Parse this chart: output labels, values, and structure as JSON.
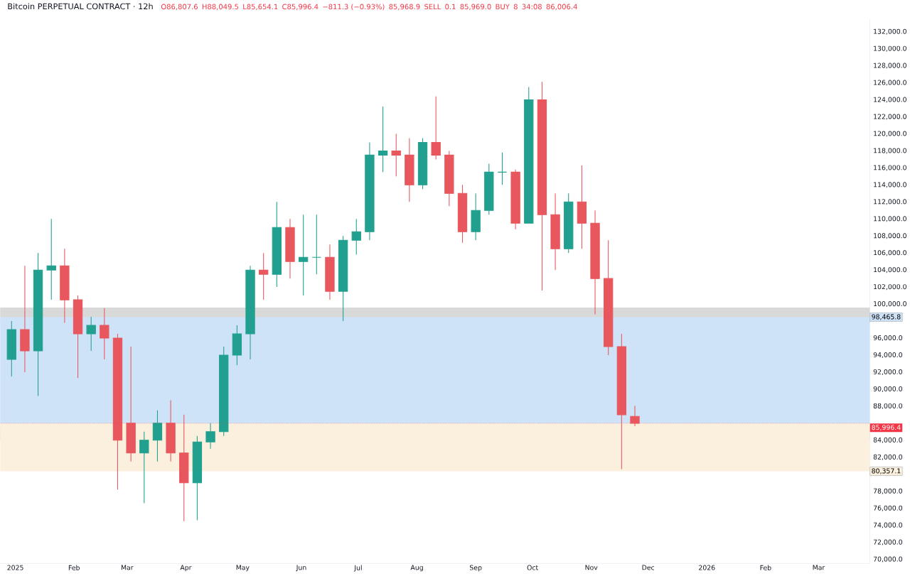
{
  "chart_data": {
    "type": "candlestick",
    "title": "Bitcoin PERPETUAL CONTRACT · 12h",
    "annotations": [
      "O86,807.6",
      "H88,049.5",
      "L85,654.1",
      "C85,996.4",
      "−811.3 (−0.93%)",
      "85,968.9",
      "SELL",
      "0.1",
      "85,969.0",
      "BUY",
      "8",
      "34:08",
      "86,006.4"
    ],
    "x": [
      "2024-12-30",
      "2025-01-06",
      "2025-01-13",
      "2025-01-20",
      "2025-01-27",
      "2025-02-03",
      "2025-02-10",
      "2025-02-17",
      "2025-02-24",
      "2025-03-03",
      "2025-03-10",
      "2025-03-17",
      "2025-03-24",
      "2025-03-31",
      "2025-04-07",
      "2025-04-14",
      "2025-04-21",
      "2025-04-28",
      "2025-05-05",
      "2025-05-12",
      "2025-05-19",
      "2025-05-26",
      "2025-06-02",
      "2025-06-09",
      "2025-06-16",
      "2025-06-23",
      "2025-06-30",
      "2025-07-07",
      "2025-07-14",
      "2025-07-21",
      "2025-07-28",
      "2025-08-04",
      "2025-08-11",
      "2025-08-18",
      "2025-08-25",
      "2025-09-01",
      "2025-09-08",
      "2025-09-15",
      "2025-09-22",
      "2025-09-29",
      "2025-10-06",
      "2025-10-13",
      "2025-10-20",
      "2025-10-27",
      "2025-11-03",
      "2025-11-10",
      "2025-11-17",
      "2025-11-24"
    ],
    "ohlc": [
      [
        93500,
        98000,
        91500,
        97000
      ],
      [
        97000,
        104500,
        92000,
        94500
      ],
      [
        94500,
        106000,
        89200,
        104000
      ],
      [
        104000,
        110000,
        100500,
        104500
      ],
      [
        104500,
        106500,
        97800,
        100500
      ],
      [
        100500,
        101000,
        91300,
        96500
      ],
      [
        96500,
        98500,
        94500,
        97500
      ],
      [
        97500,
        99500,
        93500,
        96000
      ],
      [
        96000,
        96500,
        78200,
        84000
      ],
      [
        86000,
        95000,
        81500,
        82500
      ],
      [
        82500,
        85000,
        76600,
        84000
      ],
      [
        84000,
        87500,
        81500,
        86000
      ],
      [
        86000,
        88700,
        81500,
        82500
      ],
      [
        82500,
        87000,
        74500,
        79000
      ],
      [
        79000,
        84500,
        74600,
        83800
      ],
      [
        83800,
        86000,
        83000,
        85000
      ],
      [
        85000,
        95000,
        84500,
        94000
      ],
      [
        94000,
        97500,
        92800,
        96500
      ],
      [
        96500,
        104500,
        93500,
        104000
      ],
      [
        104000,
        106000,
        100500,
        103500
      ],
      [
        103500,
        112000,
        102000,
        109000
      ],
      [
        109000,
        110000,
        103000,
        105000
      ],
      [
        105000,
        110500,
        101000,
        105500
      ],
      [
        105500,
        110500,
        103500,
        105500
      ],
      [
        105500,
        107000,
        100500,
        101500
      ],
      [
        101500,
        108000,
        98000,
        107500
      ],
      [
        107500,
        110000,
        105800,
        108500
      ],
      [
        108500,
        119000,
        107500,
        117500
      ],
      [
        117500,
        123200,
        115500,
        118000
      ],
      [
        118000,
        120000,
        115000,
        117500
      ],
      [
        117500,
        119500,
        112000,
        114000
      ],
      [
        114000,
        119500,
        113500,
        119000
      ],
      [
        119000,
        124400,
        117000,
        117500
      ],
      [
        117500,
        118000,
        111500,
        113000
      ],
      [
        113000,
        114000,
        107200,
        108500
      ],
      [
        108500,
        113000,
        107500,
        111000
      ],
      [
        111000,
        116500,
        110500,
        115500
      ],
      [
        115500,
        117800,
        114000,
        115500
      ],
      [
        115500,
        115800,
        108800,
        109500
      ],
      [
        109500,
        125500,
        109500,
        124000
      ],
      [
        124000,
        126100,
        101600,
        110500
      ],
      [
        110500,
        113000,
        104000,
        106500
      ],
      [
        106500,
        113000,
        106000,
        112000
      ],
      [
        112000,
        116300,
        106500,
        109500
      ],
      [
        109500,
        111000,
        98800,
        103000
      ],
      [
        103000,
        107500,
        94000,
        95000
      ],
      [
        95000,
        96500,
        80600,
        87000
      ],
      [
        86807.6,
        88049.5,
        85654.1,
        85996.4
      ]
    ],
    "xlim": [
      "2024-12-24",
      "2026-03-28"
    ],
    "xticks": [
      {
        "value": "2025-01-01",
        "label": "2025"
      },
      {
        "value": "2025-02-01",
        "label": "Feb"
      },
      {
        "value": "2025-03-01",
        "label": "Mar"
      },
      {
        "value": "2025-04-01",
        "label": "Apr"
      },
      {
        "value": "2025-05-01",
        "label": "May"
      },
      {
        "value": "2025-06-01",
        "label": "Jun"
      },
      {
        "value": "2025-07-01",
        "label": "Jul"
      },
      {
        "value": "2025-08-01",
        "label": "Aug"
      },
      {
        "value": "2025-09-01",
        "label": "Sep"
      },
      {
        "value": "2025-10-01",
        "label": "Oct"
      },
      {
        "value": "2025-11-01",
        "label": "Nov"
      },
      {
        "value": "2025-12-01",
        "label": "Dec"
      },
      {
        "value": "2026-01-01",
        "label": "2026"
      },
      {
        "value": "2026-02-01",
        "label": "Feb"
      },
      {
        "value": "2026-03-01",
        "label": "Mar"
      }
    ],
    "ylim": [
      69500,
      133500
    ],
    "yticks": [
      {
        "value": 70000,
        "label": "70,000.0"
      },
      {
        "value": 72000,
        "label": "72,000.0"
      },
      {
        "value": 74000,
        "label": "74,000.0"
      },
      {
        "value": 76000,
        "label": "76,000.0"
      },
      {
        "value": 78000,
        "label": "78,000.0"
      },
      {
        "value": 82000,
        "label": "82,000.0"
      },
      {
        "value": 84000,
        "label": "84,000.0"
      },
      {
        "value": 88000,
        "label": "88,000.0"
      },
      {
        "value": 90000,
        "label": "90,000.0"
      },
      {
        "value": 92000,
        "label": "92,000.0"
      },
      {
        "value": 94000,
        "label": "94,000.0"
      },
      {
        "value": 96000,
        "label": "96,000.0"
      },
      {
        "value": 100000,
        "label": "100,000.0"
      },
      {
        "value": 102000,
        "label": "102,000.0"
      },
      {
        "value": 104000,
        "label": "104,000.0"
      },
      {
        "value": 106000,
        "label": "106,000.0"
      },
      {
        "value": 108000,
        "label": "108,000.0"
      },
      {
        "value": 110000,
        "label": "110,000.0"
      },
      {
        "value": 112000,
        "label": "112,000.0"
      },
      {
        "value": 114000,
        "label": "114,000.0"
      },
      {
        "value": 116000,
        "label": "116,000.0"
      },
      {
        "value": 118000,
        "label": "118,000.0"
      },
      {
        "value": 120000,
        "label": "120,000.0"
      },
      {
        "value": 122000,
        "label": "122,000.0"
      },
      {
        "value": 124000,
        "label": "124,000.0"
      },
      {
        "value": 126000,
        "label": "126,000.0"
      },
      {
        "value": 128000,
        "label": "128,000.0"
      },
      {
        "value": 130000,
        "label": "130,000.0"
      },
      {
        "value": 132000,
        "label": "132,000.0"
      }
    ],
    "bands": [
      {
        "axis": "y",
        "from": 97800,
        "to": 99580,
        "color": "#d9d9d9"
      },
      {
        "axis": "y",
        "from": 84020,
        "to": 85560,
        "color": "#d9d9d9"
      },
      {
        "axis": "y",
        "from": 98465.8,
        "to": 85996.4,
        "label": "98,465.8",
        "color": "#cfe3f8"
      },
      {
        "axis": "y",
        "from": 80357.1,
        "to": 85996.4,
        "label": "80,357.1",
        "color": "#fbf0dd"
      }
    ],
    "ref_lines": [
      {
        "axis": "y",
        "value": 85996.4,
        "label": "85,996.4",
        "color": "#f23645",
        "line_style": "dotted"
      }
    ]
  }
}
